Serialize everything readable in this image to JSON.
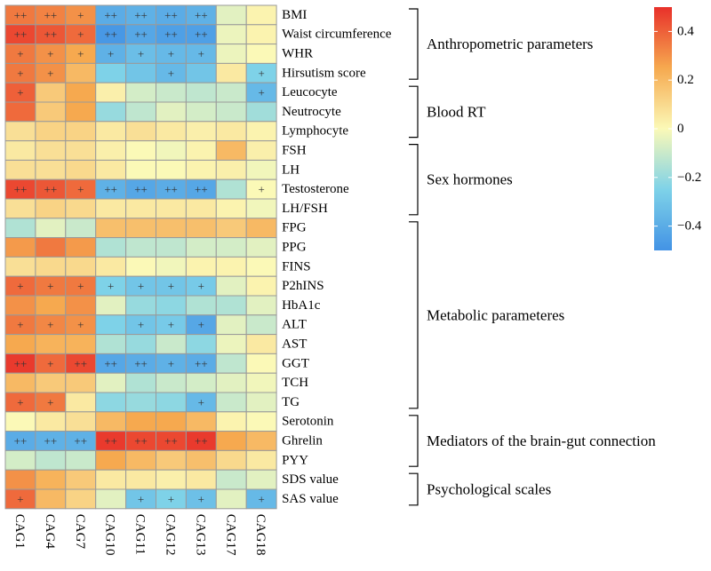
{
  "chart_data": {
    "type": "heatmap",
    "columns": [
      "CAG1",
      "CAG4",
      "CAG7",
      "CAG10",
      "CAG11",
      "CAG12",
      "CAG13",
      "CAG17",
      "CAG18"
    ],
    "rows": [
      {
        "label": "BMI",
        "values": [
          0.35,
          0.33,
          0.3,
          -0.4,
          -0.38,
          -0.4,
          -0.38,
          -0.05,
          0.02
        ],
        "sig": [
          "++",
          "++",
          "+",
          "++",
          "++",
          "++",
          "++",
          "",
          ""
        ]
      },
      {
        "label": "Waist circumference",
        "values": [
          0.45,
          0.42,
          0.38,
          -0.48,
          -0.42,
          -0.45,
          -0.45,
          -0.03,
          0.02
        ],
        "sig": [
          "++",
          "++",
          "+",
          "++",
          "++",
          "++",
          "++",
          "",
          ""
        ]
      },
      {
        "label": "WHR",
        "values": [
          0.35,
          0.3,
          0.25,
          -0.38,
          -0.33,
          -0.35,
          -0.35,
          -0.03,
          0.0
        ],
        "sig": [
          "+",
          "+",
          "+",
          "+",
          "+",
          "+",
          "+",
          "",
          ""
        ]
      },
      {
        "label": "Hirsutism score",
        "values": [
          0.35,
          0.3,
          0.2,
          -0.25,
          -0.3,
          -0.35,
          -0.3,
          0.05,
          -0.25
        ],
        "sig": [
          "+",
          "+",
          "",
          "",
          "",
          "+",
          "",
          "",
          "+"
        ]
      },
      {
        "label": "Leucocyte",
        "values": [
          0.4,
          0.15,
          0.25,
          0.03,
          -0.08,
          -0.1,
          -0.12,
          -0.1,
          -0.35
        ],
        "sig": [
          "+",
          "",
          "",
          "",
          "",
          "",
          "",
          "",
          "+"
        ]
      },
      {
        "label": "Neutrocyte",
        "values": [
          0.38,
          0.15,
          0.25,
          -0.2,
          -0.12,
          -0.05,
          -0.08,
          -0.1,
          -0.18
        ],
        "sig": [
          "",
          "",
          "",
          "",
          "",
          "",
          "",
          "",
          ""
        ]
      },
      {
        "label": "Lymphocyte",
        "values": [
          0.08,
          0.12,
          0.12,
          0.05,
          0.08,
          0.05,
          0.03,
          0.05,
          0.02
        ],
        "sig": [
          "",
          "",
          "",
          "",
          "",
          "",
          "",
          "",
          ""
        ]
      },
      {
        "label": "FSH",
        "values": [
          0.05,
          0.08,
          0.08,
          0.03,
          0.0,
          -0.02,
          0.02,
          0.2,
          0.03
        ],
        "sig": [
          "",
          "",
          "",
          "",
          "",
          "",
          "",
          "",
          ""
        ]
      },
      {
        "label": "LH",
        "values": [
          0.08,
          0.08,
          0.1,
          0.05,
          0.0,
          0.0,
          0.02,
          0.03,
          -0.02
        ],
        "sig": [
          "",
          "",
          "",
          "",
          "",
          "",
          "",
          "",
          ""
        ]
      },
      {
        "label": "Testosterone",
        "values": [
          0.45,
          0.42,
          0.38,
          -0.38,
          -0.42,
          -0.4,
          -0.42,
          -0.15,
          0.0
        ],
        "sig": [
          "++",
          "++",
          "+",
          "++",
          "++",
          "++",
          "++",
          "",
          "+"
        ]
      },
      {
        "label": "LH/FSH",
        "values": [
          0.08,
          0.12,
          0.1,
          0.05,
          0.05,
          0.05,
          0.05,
          0.02,
          -0.02
        ],
        "sig": [
          "",
          "",
          "",
          "",
          "",
          "",
          "",
          "",
          ""
        ]
      },
      {
        "label": "FPG",
        "values": [
          -0.15,
          -0.05,
          -0.1,
          0.18,
          0.18,
          0.18,
          0.18,
          0.15,
          0.2
        ],
        "sig": [
          "",
          "",
          "",
          "",
          "",
          "",
          "",
          "",
          ""
        ]
      },
      {
        "label": "PPG",
        "values": [
          0.28,
          0.35,
          0.28,
          -0.15,
          -0.12,
          -0.12,
          -0.08,
          -0.08,
          -0.05
        ],
        "sig": [
          "",
          "",
          "",
          "",
          "",
          "",
          "",
          "",
          ""
        ]
      },
      {
        "label": "FINS",
        "values": [
          0.08,
          0.1,
          0.1,
          0.05,
          0.0,
          -0.02,
          0.02,
          0.02,
          0.0
        ],
        "sig": [
          "",
          "",
          "",
          "",
          "",
          "",
          "",
          "",
          ""
        ]
      },
      {
        "label": "P2hINS",
        "values": [
          0.38,
          0.35,
          0.35,
          -0.25,
          -0.3,
          -0.3,
          -0.28,
          -0.05,
          0.02
        ],
        "sig": [
          "+",
          "+",
          "+",
          "+",
          "+",
          "+",
          "+",
          "",
          ""
        ]
      },
      {
        "label": "HbA1c",
        "values": [
          0.3,
          0.25,
          0.3,
          -0.05,
          -0.2,
          -0.22,
          -0.15,
          -0.15,
          -0.05
        ],
        "sig": [
          "",
          "",
          "",
          "",
          "",
          "",
          "",
          "",
          ""
        ]
      },
      {
        "label": "ALT",
        "values": [
          0.35,
          0.32,
          0.3,
          -0.25,
          -0.3,
          -0.28,
          -0.42,
          -0.05,
          -0.1
        ],
        "sig": [
          "+",
          "+",
          "+",
          "",
          "+",
          "+",
          "+",
          "",
          ""
        ]
      },
      {
        "label": "AST",
        "values": [
          0.25,
          0.22,
          0.22,
          -0.15,
          -0.2,
          -0.1,
          -0.22,
          -0.03,
          0.05
        ],
        "sig": [
          "",
          "",
          "",
          "",
          "",
          "",
          "",
          "",
          ""
        ]
      },
      {
        "label": "GGT",
        "values": [
          0.48,
          0.38,
          0.45,
          -0.42,
          -0.4,
          -0.38,
          -0.4,
          -0.12,
          0.0
        ],
        "sig": [
          "++",
          "+",
          "++",
          "++",
          "++",
          "+",
          "++",
          "",
          ""
        ]
      },
      {
        "label": "TCH",
        "values": [
          0.2,
          0.15,
          0.15,
          -0.05,
          -0.15,
          -0.1,
          -0.08,
          -0.05,
          -0.02
        ],
        "sig": [
          "",
          "",
          "",
          "",
          "",
          "",
          "",
          "",
          ""
        ]
      },
      {
        "label": "TG",
        "values": [
          0.38,
          0.35,
          0.05,
          -0.22,
          -0.2,
          -0.22,
          -0.35,
          -0.1,
          -0.05
        ],
        "sig": [
          "+",
          "+",
          "",
          "",
          "",
          "",
          "+",
          "",
          ""
        ]
      },
      {
        "label": "Serotonin",
        "values": [
          0.0,
          0.05,
          0.08,
          0.2,
          0.25,
          0.25,
          0.2,
          0.02,
          0.0
        ],
        "sig": [
          "",
          "",
          "",
          "",
          "",
          "",
          "",
          "",
          ""
        ]
      },
      {
        "label": "Ghrelin",
        "values": [
          -0.4,
          -0.38,
          -0.38,
          0.48,
          0.45,
          0.45,
          0.48,
          0.25,
          0.2
        ],
        "sig": [
          "++",
          "++",
          "++",
          "++",
          "++",
          "++",
          "++",
          "",
          ""
        ]
      },
      {
        "label": "PYY",
        "values": [
          -0.08,
          -0.12,
          -0.1,
          0.25,
          0.2,
          0.15,
          0.18,
          0.1,
          0.05
        ],
        "sig": [
          "",
          "",
          "",
          "",
          "",
          "",
          "",
          "",
          ""
        ]
      },
      {
        "label": "SDS value",
        "values": [
          0.3,
          0.22,
          0.15,
          0.05,
          0.05,
          0.03,
          0.05,
          -0.1,
          -0.05
        ],
        "sig": [
          "",
          "",
          "",
          "",
          "",
          "",
          "",
          "",
          ""
        ]
      },
      {
        "label": "SAS value",
        "values": [
          0.38,
          0.2,
          0.12,
          -0.05,
          -0.3,
          -0.25,
          -0.32,
          -0.05,
          -0.35
        ],
        "sig": [
          "+",
          "",
          "",
          "",
          "+",
          "+",
          "+",
          "",
          "+"
        ]
      }
    ],
    "groups": [
      {
        "label": "Anthropometric parameters",
        "start": 0,
        "end": 3
      },
      {
        "label": "Blood RT",
        "start": 4,
        "end": 6
      },
      {
        "label": "Sex hormones",
        "start": 7,
        "end": 10
      },
      {
        "label": "Metabolic parameteres",
        "start": 11,
        "end": 20
      },
      {
        "label": "Mediators of the brain-gut connection",
        "start": 21,
        "end": 23
      },
      {
        "label": "Psychological scales",
        "start": 24,
        "end": 25
      }
    ],
    "colorbar": {
      "min": -0.5,
      "max": 0.5,
      "ticks": [
        0.4,
        0.2,
        0,
        -0.2,
        -0.4
      ],
      "tick_labels": [
        "0.4",
        "0.2",
        "0",
        "−0.2",
        "−0.4"
      ],
      "colors": [
        "#4393e5",
        "#7ed2e8",
        "#fbf9b7",
        "#f6a94f",
        "#e8302a"
      ]
    }
  }
}
